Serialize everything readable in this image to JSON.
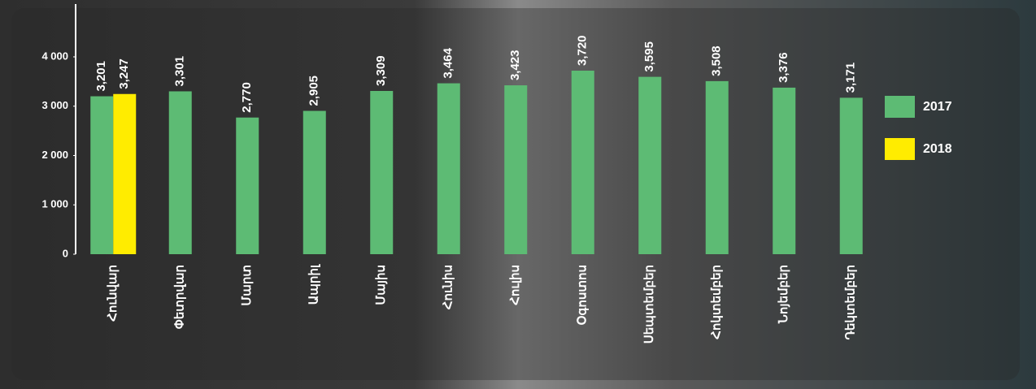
{
  "chart_data": {
    "type": "bar",
    "categories": [
      "Հունվար",
      "Փետրվար",
      "Մարտ",
      "Ապրիլ",
      "Մայիս",
      "Հունիս",
      "Հուլիս",
      "Օգոստոս",
      "Սեպտեմբեր",
      "Հոկտեմբեր",
      "Նոյեմբեր",
      "Դեկտեմբեր"
    ],
    "series": [
      {
        "name": "2017",
        "color": "#5dbb74",
        "values": [
          3201,
          3301,
          2770,
          2905,
          3309,
          3464,
          3423,
          3720,
          3595,
          3508,
          3376,
          3171
        ],
        "value_labels": [
          "3,201",
          "3,301",
          "2,770",
          "2,905",
          "3,309",
          "3,464",
          "3,423",
          "3,720",
          "3,595",
          "3,508",
          "3,376",
          "3,171"
        ]
      },
      {
        "name": "2018",
        "color": "#ffec00",
        "values": [
          3247,
          null,
          null,
          null,
          null,
          null,
          null,
          null,
          null,
          null,
          null,
          null
        ],
        "value_labels": [
          "3,247",
          null,
          null,
          null,
          null,
          null,
          null,
          null,
          null,
          null,
          null,
          null
        ]
      }
    ],
    "ylim": [
      0,
      5070
    ],
    "yticks": [
      0,
      {
        "value": 1000,
        "label": "1 000"
      },
      {
        "value": 2000,
        "label": "2 000"
      },
      {
        "value": 3000,
        "label": "3 000"
      },
      {
        "value": 4000,
        "label": "4 000"
      }
    ],
    "legend": "right"
  }
}
